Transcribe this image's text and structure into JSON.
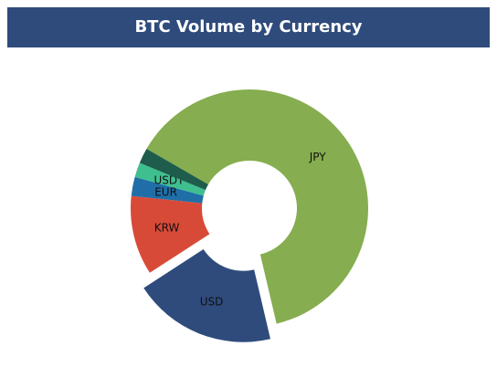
{
  "chart_data": {
    "type": "donut",
    "title": "BTC Volume by Currency",
    "categories": [
      "JPY",
      "USD",
      "KRW",
      "EUR",
      "USDT",
      null
    ],
    "values": [
      63,
      19.5,
      10.8,
      2.6,
      2,
      2.1
    ],
    "colors": [
      "#86ad4f",
      "#2f4b7c",
      "#d84a38",
      "#1f6ea8",
      "#3fbf8f",
      "#1e5c4c"
    ],
    "exploded": [
      false,
      true,
      false,
      false,
      false,
      false
    ],
    "start_angle": 300
  }
}
